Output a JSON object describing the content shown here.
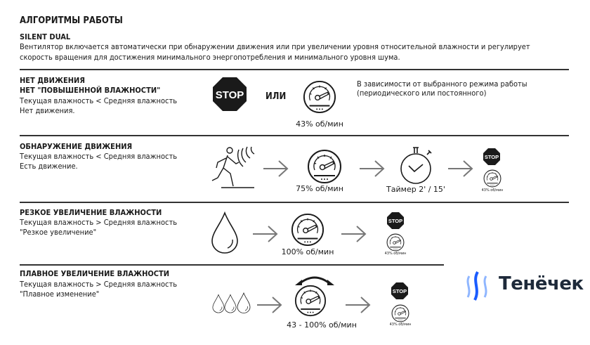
{
  "header": {
    "title": "АЛГОРИТМЫ РАБОТЫ",
    "subtitle": "SILENT DUAL",
    "description_lines": [
      "Вентилятор включается автоматически при обнаружении движения или при увеличении уровня относительной влажности и регулирует",
      "скорость вращения для достижения минимального энергопотребления и минимального уровня шума."
    ]
  },
  "sections": [
    {
      "title_lines": [
        "НЕТ ДВИЖЕНИЯ",
        "НЕТ \"ПОВЫШЕННОЙ ВЛАЖНОСТИ\""
      ],
      "lines": [
        "Текущая влажность < Средняя влажность",
        "Нет движения."
      ],
      "stop": "STOP",
      "or": "ИЛИ",
      "speed": "43% об/мин",
      "note_lines": [
        "В зависимости от выбранного режима работы",
        "(периодического или постоянного)"
      ]
    },
    {
      "title_lines": [
        "ОБНАРУЖЕНИЕ ДВИЖЕНИЯ"
      ],
      "lines": [
        "Текущая влажность < Средняя влажность",
        "Есть движение."
      ],
      "speed": "75% об/мин",
      "timer": "Таймер 2' / 15'",
      "stop": "STOP",
      "end_speed": "43% об/мин"
    },
    {
      "title_lines": [
        "РЕЗКОЕ УВЕЛИЧЕНИЕ ВЛАЖНОСТИ"
      ],
      "lines": [
        "Текущая влажность > Средняя влажность",
        "\"Резкое увеличение\""
      ],
      "speed": "100% об/мин",
      "stop": "STOP",
      "end_speed": "43% об/мин"
    },
    {
      "title_lines": [
        "ПЛАВНОЕ УВЕЛИЧЕНИЕ ВЛАЖНОСТИ"
      ],
      "lines": [
        "Текущая влажность > Средняя влажность",
        "\"Плавное изменение\""
      ],
      "speed": "43 - 100% об/мин",
      "stop": "STOP",
      "end_speed": "43% об/мин"
    }
  ],
  "logo": {
    "text": "Тенёчек",
    "colors": [
      "#1a5cff",
      "#8fb6ff"
    ]
  }
}
